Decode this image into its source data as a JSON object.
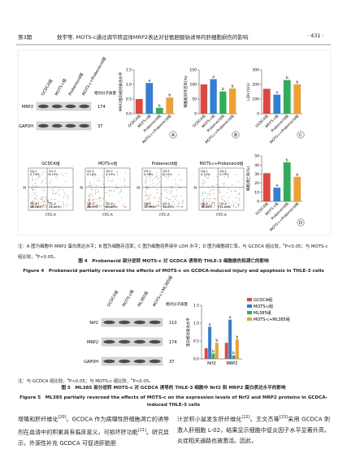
{
  "header": {
    "left": "第3期",
    "center": "敖宇等. MOTS-c通过调节转运体MRP2表达对甘氨胆酸钠诱导的肝细胞损伤的影响",
    "right": "· 431 ·"
  },
  "figure4": {
    "blot": {
      "lanes": [
        "GCDCA组",
        "MOTS-c组",
        "Probenecid组",
        "MOTS-c+Probenecid组"
      ],
      "mw_title": "相对分子质量",
      "rows": [
        {
          "name": "MRP2",
          "mw": "174"
        },
        {
          "name": "GAPDH",
          "mw": "37"
        }
      ]
    },
    "panels": [
      {
        "label": "A",
        "ylabel": "MRP2蛋白相对表达水平",
        "categories": [
          "GCDCA组",
          "MOTS-c组",
          "Probenecid组",
          "MOTS-c+Probenecid组"
        ],
        "values": [
          0.5,
          1.05,
          0.2,
          0.55
        ],
        "colors": [
          "#e2453c",
          "#2f7fd8",
          "#2fae5a",
          "#f0a030"
        ],
        "sig": [
          null,
          "a",
          "b",
          "b"
        ],
        "ylim": [
          0,
          1.5
        ],
        "yticks": [
          {
            "value": 0,
            "label": "0.0"
          },
          {
            "value": 0.5,
            "label": "0.5"
          },
          {
            "value": 1,
            "label": "1.0"
          },
          {
            "value": 1.5,
            "label": "1.5"
          }
        ]
      },
      {
        "label": "B",
        "ylabel": "细胞相对存活率(%)",
        "categories": [
          "GCDCA组",
          "MOTS-c组",
          "Probenecid组",
          "MOTS-c+Probenecid组"
        ],
        "values": [
          100,
          118,
          76,
          86
        ],
        "colors": [
          "#e2453c",
          "#2f7fd8",
          "#2fae5a",
          "#f0a030"
        ],
        "sig": [
          null,
          "a",
          "b",
          "b"
        ],
        "ylim": [
          0,
          150
        ],
        "yticks": [
          0,
          50,
          100,
          150
        ]
      },
      {
        "label": "C",
        "ylabel": "LDH (U/L)",
        "categories": [
          "GCDCA组",
          "MOTS-c组",
          "Probenecid组",
          "MOTS-c+Probenecid组"
        ],
        "values": [
          170,
          130,
          230,
          200
        ],
        "colors": [
          "#e2453c",
          "#2f7fd8",
          "#2fae5a",
          "#f0a030"
        ],
        "sig": [
          null,
          "a",
          "b",
          "b"
        ],
        "ylim": [
          0,
          300
        ],
        "yticks": [
          0,
          100,
          200,
          300
        ]
      },
      {
        "label": "D",
        "ylabel": "细胞凋亡率(%)",
        "categories": [
          "GCDCA组",
          "MOTS-c组",
          "Probenecid组",
          "MOTS-c+Probenecid组"
        ],
        "values": [
          31,
          15,
          43,
          27
        ],
        "colors": [
          "#e2453c",
          "#2f7fd8",
          "#2fae5a",
          "#f0a030"
        ],
        "sig": [
          null,
          "a",
          "b",
          "b"
        ],
        "ylim": [
          0,
          50
        ],
        "yticks": [
          0,
          10,
          20,
          30,
          40,
          50
        ]
      }
    ],
    "flow": {
      "xlabel": "FITC-A",
      "ylabel": "PI",
      "plots": [
        {
          "title": "GCDCA组",
          "quadrants": [
            {
              "name": "Q1-1",
              "value": "0.73%"
            },
            {
              "name": "Q1-2",
              "value": "6.19%"
            },
            {
              "name": "Q1-3",
              "value": "68.26%"
            },
            {
              "name": "Q1-4",
              "value": "24.82%"
            }
          ]
        },
        {
          "title": "MOTS-c组",
          "quadrants": [
            {
              "name": "Q2-1",
              "value": "0.19%"
            },
            {
              "name": "Q2-2",
              "value": "4.19%"
            },
            {
              "name": "Q2-3",
              "value": "84.73%"
            },
            {
              "name": "Q2-4",
              "value": "10.89%"
            }
          ]
        },
        {
          "title": "Probenecid组",
          "quadrants": [
            {
              "name": "Q3-1",
              "value": "0.78%"
            },
            {
              "name": "Q3-2",
              "value": "8.74%"
            },
            {
              "name": "Q3-3",
              "value": "55.99%"
            },
            {
              "name": "Q3-4",
              "value": "34.49%"
            }
          ]
        },
        {
          "title": "MOTS-c+Probenecid组",
          "quadrants": [
            {
              "name": "Q4-1",
              "value": "0.73%"
            },
            {
              "name": "Q4-2",
              "value": "5.79%"
            },
            {
              "name": "Q4-3",
              "value": "72.44%"
            },
            {
              "name": "Q4-4",
              "value": "21.04%"
            }
          ]
        }
      ]
    },
    "note": [
      "注：A 图为细胞中 MRP2 蛋白表达水平；B 图为细胞存活率；C 图为细胞培养液中 LDH 水平；D 图为细胞凋亡率。与 GCDCA 组比较，",
      "a",
      "P<0.05；与 MOTS-c 组比较，",
      "b",
      "P<0.05。"
    ],
    "caption_cn": "图 4　Probenecid 部分逆转 MOTS-c 对 GCDCA 诱导的 THLE-3 细胞损伤和凋亡的影响",
    "caption_en": "Figure 4　Probenecid partially reversed the effects of MOTS-c on GCDCA-induced injury and apoptosis in THLE-3 cells"
  },
  "figure5": {
    "blot": {
      "lanes": [
        "GCDCA组",
        "MOTS-c组",
        "ML385组",
        "MOTS-c+ML385组"
      ],
      "mw_title": "相对分子质量",
      "rows": [
        {
          "name": "Nrf2",
          "mw": "110"
        },
        {
          "name": "MRP2",
          "mw": "174"
        },
        {
          "name": "GAPDH",
          "mw": "37"
        }
      ]
    },
    "chart": {
      "ylabel": "蛋白相对表达水平",
      "categories": [
        "Nrf2",
        "MRP2"
      ],
      "ylim": [
        0,
        1.5
      ],
      "yticks": [
        {
          "value": 0,
          "label": "0.0"
        },
        {
          "value": 0.5,
          "label": "0.5"
        },
        {
          "value": 1,
          "label": "1.0"
        },
        {
          "value": 1.5,
          "label": "1.5"
        }
      ],
      "series": [
        {
          "name": "GCDCA组",
          "color": "#e2453c",
          "values": [
            0.3,
            0.45
          ],
          "sig": [
            null,
            null
          ]
        },
        {
          "name": "MOTS-c组",
          "color": "#2f7fd8",
          "values": [
            0.9,
            1.1
          ],
          "sig": [
            "a",
            "a"
          ]
        },
        {
          "name": "ML385组",
          "color": "#2fae5a",
          "values": [
            0.15,
            0.1
          ],
          "sig": [
            "b",
            "b"
          ]
        },
        {
          "name": "MOTS-c+ML385组",
          "color": "#f0a030",
          "values": [
            0.45,
            0.55
          ],
          "sig": [
            "b",
            "b"
          ]
        }
      ]
    },
    "note": [
      "注：与 GCDCA 组比较，",
      "a",
      "P<0.05；与 MOTS-c 组比较，",
      "b",
      "P<0.05。"
    ],
    "caption_cn": "图 5　ML385 部分逆转 MOTS-c 对 GCDCA 诱导的 THLE-3 细胞中 Nrf2 和 MRP2 蛋白表达水平的影响",
    "caption_en": "Figure 5　ML385 partially reversed the effects of MOTS-c on the expression levels of Nrf2 and MRP2 proteins in GCDCA-induced THLE-3 cells"
  },
  "body": {
    "left": [
      "增殖和肝纤维化",
      "[20]",
      "。GCDCA 作为病理性肝细胞凋亡的诱导剂在血清中的积累具有临床意义，可损坏肝功能",
      "[21]",
      "。研究显示，外源性补充 GCDCA 可促进肝脏胆"
    ],
    "right": [
      "汁淤积小鼠发生肝纤维化",
      "[22]",
      "。王文杰等",
      "[23]",
      "采用 GCDCA 刺激人肝细胞 L-02，结果显示细胞中促炎因子水平显著升高，炎症相关通路也被激活。因此，"
    ]
  }
}
